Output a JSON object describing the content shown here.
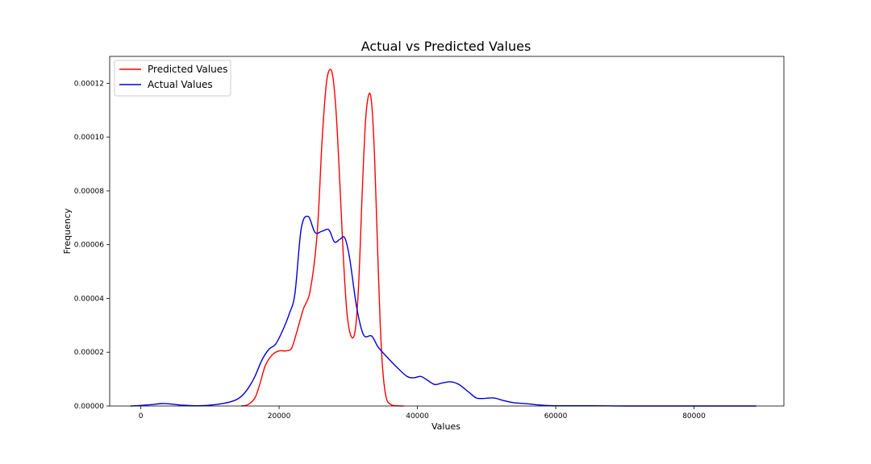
{
  "chart_data": {
    "type": "line",
    "title": "Actual vs Predicted Values",
    "xlabel": "Values",
    "ylabel": "Frequency",
    "xlim": [
      -4500,
      93000
    ],
    "ylim": [
      0,
      0.00013
    ],
    "x_ticks": [
      0,
      20000,
      40000,
      60000,
      80000
    ],
    "x_tick_labels": [
      "0",
      "20000",
      "40000",
      "60000",
      "80000"
    ],
    "y_ticks": [
      0,
      2e-05,
      4e-05,
      6e-05,
      8e-05,
      0.0001,
      0.00012
    ],
    "y_tick_labels": [
      "0.00000",
      "0.00002",
      "0.00004",
      "0.00006",
      "0.00008",
      "0.00010",
      "0.00012"
    ],
    "grid": false,
    "legend_position": "top-left",
    "series": [
      {
        "name": "Predicted Values",
        "color": "#ff0000",
        "x": [
          14500,
          15500,
          16500,
          17200,
          18000,
          19000,
          20000,
          21000,
          21800,
          22500,
          23500,
          24500,
          25500,
          26200,
          26800,
          27300,
          27800,
          28300,
          28800,
          29300,
          29800,
          30400,
          31000,
          31500,
          32000,
          32500,
          33000,
          33400,
          33800,
          34200,
          34600,
          35000,
          35500,
          36200,
          37000,
          38000
        ],
        "y": [
          0,
          5e-07,
          3e-06,
          8e-06,
          1.5e-05,
          1.9e-05,
          2.05e-05,
          2.05e-05,
          2.15e-05,
          2.7e-05,
          3.6e-05,
          4.3e-05,
          6.4e-05,
          9.8e-05,
          0.000119,
          0.000125,
          0.000122,
          0.000107,
          8.2e-05,
          5.5e-05,
          3.5e-05,
          2.6e-05,
          2.8e-05,
          4.5e-05,
          7.8e-05,
          0.000106,
          0.000116,
          0.000112,
          9.3e-05,
          6.2e-05,
          3.2e-05,
          1.3e-05,
          3e-06,
          5e-07,
          1e-07,
          0
        ]
      },
      {
        "name": "Actual Values",
        "color": "#0000dd",
        "x": [
          -1500,
          0,
          1500,
          3000,
          4500,
          6000,
          8000,
          10000,
          12000,
          13500,
          14500,
          15500,
          16500,
          17500,
          18500,
          19500,
          20500,
          21500,
          22300,
          23200,
          24200,
          25200,
          26200,
          27200,
          28000,
          28800,
          29500,
          30200,
          31200,
          32200,
          33400,
          34300,
          35500,
          37000,
          38500,
          39500,
          40500,
          41500,
          42500,
          43500,
          44800,
          46000,
          47500,
          48500,
          49500,
          51000,
          52500,
          54000,
          56000,
          58000,
          60000,
          65000,
          70000,
          75000,
          80000,
          85000,
          89000
        ],
        "y": [
          0,
          2e-07,
          5e-07,
          9e-07,
          7e-07,
          3e-07,
          1e-07,
          3e-07,
          1e-06,
          2e-06,
          3.5e-06,
          6.5e-06,
          1.1e-05,
          1.7e-05,
          2.1e-05,
          2.3e-05,
          2.8e-05,
          3.45e-05,
          4.2e-05,
          6.6e-05,
          7.05e-05,
          6.45e-05,
          6.5e-05,
          6.55e-05,
          6.1e-05,
          6.2e-05,
          6.25e-05,
          5.5e-05,
          3.7e-05,
          2.65e-05,
          2.6e-05,
          2.2e-05,
          1.85e-05,
          1.45e-05,
          1.1e-05,
          1.05e-05,
          1.1e-05,
          9.5e-06,
          8e-06,
          8.5e-06,
          9e-06,
          8e-06,
          5e-06,
          3e-06,
          2.8e-06,
          3e-06,
          2e-06,
          1.2e-06,
          8e-07,
          3e-07,
          1e-07,
          1e-07,
          0,
          0,
          0,
          0,
          0
        ]
      }
    ]
  }
}
